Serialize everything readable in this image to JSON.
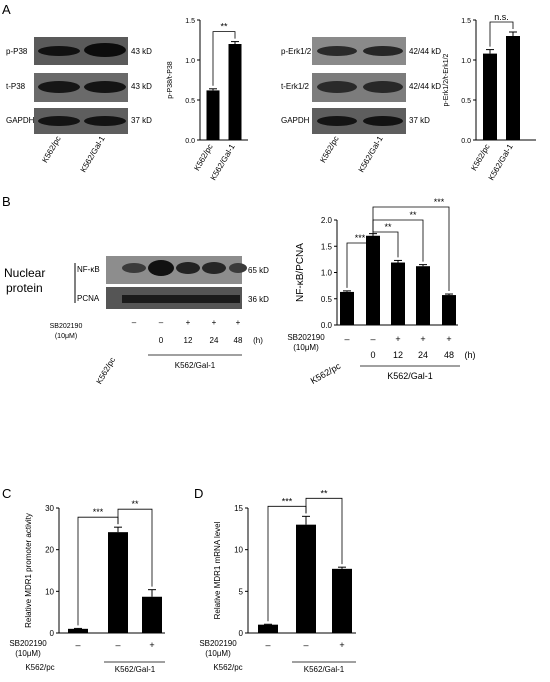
{
  "panels": {
    "A": {
      "label": "A",
      "blot1": {
        "rows": [
          "p-P38",
          "t-P38",
          "GAPDH"
        ],
        "kd": [
          "43 kD",
          "43 kD",
          "37 kD"
        ],
        "lanes": [
          "K562/pc",
          "K562/Gal-1"
        ]
      },
      "blot2": {
        "rows": [
          "p-Erk1/2",
          "t-Erk1/2",
          "GAPDH"
        ],
        "kd": [
          "42/44 kD",
          "42/44 kD",
          "37 kD"
        ],
        "lanes": [
          "K562/pc",
          "K562/Gal-1"
        ]
      }
    },
    "B": {
      "label": "B",
      "blot": {
        "side_label": [
          "Nuclear",
          "protein"
        ],
        "rows": [
          "NF-κB",
          "PCNA"
        ],
        "kd": [
          "65 kD",
          "36 kD"
        ],
        "treatment_label": [
          "SB202190",
          "(10μM)"
        ],
        "signs": [
          "–",
          "–",
          "+",
          "+",
          "+"
        ],
        "hours": [
          "0",
          "12",
          "24",
          "48"
        ],
        "hours_unit": "(h)",
        "group_pc": "K562/pc",
        "group_gal": "K562/Gal-1"
      },
      "x_annot": {
        "treatment_label": [
          "SB202190",
          "(10μM)"
        ],
        "signs": [
          "–",
          "–",
          "+",
          "+",
          "+"
        ],
        "hours": [
          "0",
          "12",
          "24",
          "48"
        ],
        "hours_unit": "(h)",
        "group_pc": "K562/pc",
        "group_gal": "K562/Gal-1"
      }
    },
    "C": {
      "label": "C",
      "x_annot": {
        "treatment_label": [
          "SB202190",
          "(10μM)"
        ],
        "signs": [
          "–",
          "–",
          "+"
        ],
        "group_pc": "K562/pc",
        "group_gal": "K562/Gal-1"
      }
    },
    "D": {
      "label": "D",
      "x_annot": {
        "treatment_label": [
          "SB202190",
          "(10μM)"
        ],
        "signs": [
          "–",
          "–",
          "+"
        ],
        "group_pc": "K562/pc",
        "group_gal": "K562/Gal-1"
      }
    }
  },
  "chart_data": [
    {
      "id": "A1",
      "type": "bar",
      "categories": [
        "K562/pc",
        "K562/Gal-1"
      ],
      "values": [
        0.62,
        1.2
      ],
      "errors": [
        0.02,
        0.03
      ],
      "ylabel": "p-P38/t-P38",
      "ylim": [
        0,
        1.5
      ],
      "yticks": [
        "0.0",
        "0.5",
        "1.0",
        "1.5"
      ],
      "sig": [
        {
          "from": 0,
          "to": 1,
          "label": "**"
        }
      ]
    },
    {
      "id": "A2",
      "type": "bar",
      "categories": [
        "K562/pc",
        "K562/Gal-1"
      ],
      "values": [
        1.08,
        1.3
      ],
      "errors": [
        0.05,
        0.05
      ],
      "ylabel": "p-Erk1/2/t-Erk1/2",
      "ylim": [
        0,
        1.5
      ],
      "yticks": [
        "0.0",
        "0.5",
        "1.0",
        "1.5"
      ],
      "sig": [
        {
          "from": 0,
          "to": 1,
          "label": "n.s."
        }
      ]
    },
    {
      "id": "B",
      "type": "bar",
      "categories": [
        "K562/pc",
        "K562/Gal-1 0",
        "K562/Gal-1 12",
        "K562/Gal-1 24",
        "K562/Gal-1 48"
      ],
      "values": [
        0.63,
        1.7,
        1.19,
        1.12,
        0.57
      ],
      "errors": [
        0.02,
        0.04,
        0.04,
        0.03,
        0.02
      ],
      "ylabel": "NF-κB/PCNA",
      "ylim": [
        0,
        2.0
      ],
      "yticks": [
        "0.0",
        "0.5",
        "1.0",
        "1.5",
        "2.0"
      ],
      "sig": [
        {
          "from": 0,
          "to": 1,
          "label": "***"
        },
        {
          "from": 1,
          "to": 2,
          "label": "**"
        },
        {
          "from": 1,
          "to": 3,
          "label": "**"
        },
        {
          "from": 1,
          "to": 4,
          "label": "***"
        }
      ]
    },
    {
      "id": "C",
      "type": "bar",
      "categories": [
        "K562/pc",
        "K562/Gal-1",
        "K562/Gal-1 + SB202190"
      ],
      "values": [
        1.0,
        24.2,
        8.7
      ],
      "errors": [
        0.1,
        1.2,
        1.7
      ],
      "ylabel": "Relative MDR1 promoter activity",
      "ylim": [
        0,
        30
      ],
      "yticks": [
        "0",
        "10",
        "20",
        "30"
      ],
      "sig": [
        {
          "from": 0,
          "to": 1,
          "label": "***"
        },
        {
          "from": 1,
          "to": 2,
          "label": "**"
        }
      ]
    },
    {
      "id": "D",
      "type": "bar",
      "categories": [
        "K562/pc",
        "K562/Gal-1",
        "K562/Gal-1 + SB202190"
      ],
      "values": [
        1.0,
        13.0,
        7.7
      ],
      "errors": [
        0.05,
        1.0,
        0.2
      ],
      "ylabel": "Relative MDR1 mRNA level",
      "ylim": [
        0,
        15
      ],
      "yticks": [
        "0",
        "5",
        "10",
        "15"
      ],
      "sig": [
        {
          "from": 0,
          "to": 1,
          "label": "***"
        },
        {
          "from": 1,
          "to": 2,
          "label": "**"
        }
      ]
    }
  ]
}
